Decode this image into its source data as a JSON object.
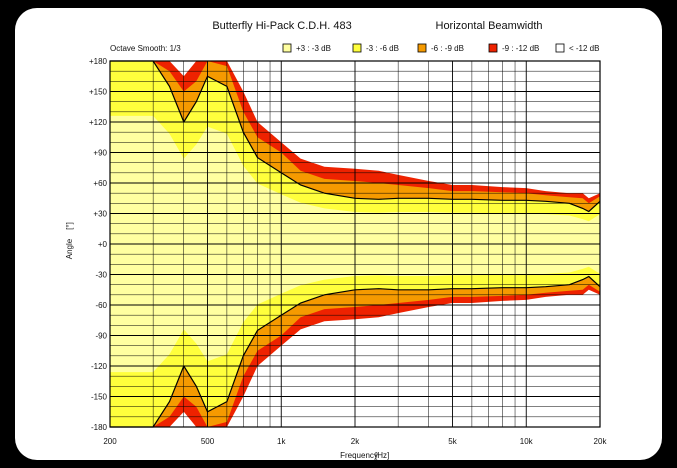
{
  "chart_data": {
    "type": "heatmap",
    "title": "Butterfly Hi-Pack C.D.H. 483",
    "subtitle": "Horizontal Beamwidth",
    "smoothing_label": "Octave Smooth: 1/3",
    "xlabel": "Frequency",
    "xunit": "[Hz]",
    "ylabel": "Angle",
    "yunit": "[°]",
    "x_scale": "log",
    "xlim": [
      200,
      20000
    ],
    "ylim": [
      -180,
      180
    ],
    "grid": true,
    "legend_position": "top",
    "x_ticks": [
      "200",
      "500",
      "1k",
      "2k",
      "5k",
      "10k",
      "20k"
    ],
    "x_tick_values": [
      200,
      500,
      1000,
      2000,
      5000,
      10000,
      20000
    ],
    "y_ticks": [
      "+180",
      "+150",
      "+120",
      "+90",
      "+60",
      "+30",
      "+0",
      "-30",
      "-60",
      "-90",
      "-120",
      "-150",
      "-180"
    ],
    "y_tick_values": [
      180,
      150,
      120,
      90,
      60,
      30,
      0,
      -30,
      -60,
      -90,
      -120,
      -150,
      -180
    ],
    "legend": [
      {
        "label": "+3 : -3 dB",
        "color": "#ffffa0"
      },
      {
        "label": "-3 : -6 dB",
        "color": "#ffff3c"
      },
      {
        "label": "-6 : -9 dB",
        "color": "#f59a00"
      },
      {
        "label": "-9 : -12 dB",
        "color": "#ee2200"
      },
      {
        "label": "< -12 dB",
        "color": "#ffffff"
      }
    ],
    "frequencies": [
      200,
      250,
      300,
      350,
      400,
      450,
      500,
      600,
      700,
      800,
      1000,
      1200,
      1500,
      2000,
      2500,
      3000,
      4000,
      5000,
      6000,
      8000,
      10000,
      12000,
      15000,
      17000,
      18000,
      20000
    ],
    "contour_6db_angle": [
      180,
      180,
      180,
      155,
      120,
      140,
      165,
      155,
      110,
      85,
      70,
      58,
      50,
      45,
      44,
      45,
      45,
      44,
      44,
      43,
      43,
      42,
      40,
      35,
      32,
      42
    ],
    "contour_9db_angle": [
      180,
      180,
      180,
      170,
      150,
      160,
      180,
      175,
      130,
      105,
      90,
      72,
      64,
      62,
      60,
      58,
      55,
      52,
      52,
      51,
      50,
      48,
      46,
      45,
      40,
      47
    ],
    "contour_12db_angle": [
      180,
      180,
      180,
      180,
      165,
      180,
      180,
      180,
      150,
      120,
      100,
      84,
      76,
      74,
      72,
      68,
      62,
      58,
      58,
      56,
      55,
      52,
      50,
      50,
      45,
      50
    ]
  }
}
